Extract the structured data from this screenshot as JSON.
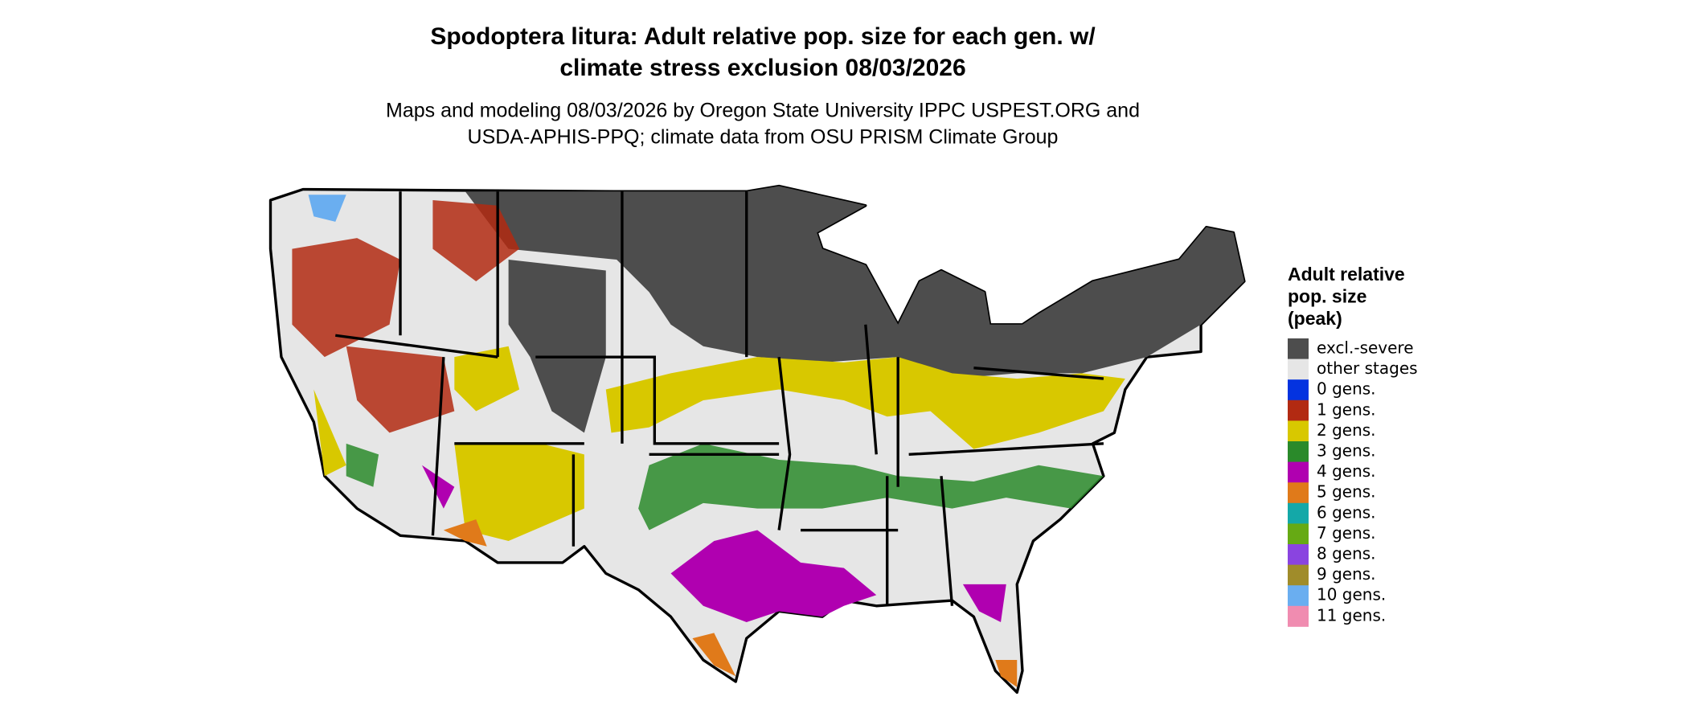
{
  "title": [
    "Spodoptera litura: Adult relative pop. size for each gen. w/",
    "climate stress exclusion 08/03/2026"
  ],
  "subtitle": [
    "Maps and modeling 08/03/2026 by Oregon State University IPPC USPEST.ORG and",
    "USDA-APHIS-PPQ; climate data from OSU PRISM Climate Group"
  ],
  "legend": {
    "title": [
      "Adult relative",
      "pop. size",
      "(peak)"
    ],
    "items": [
      {
        "label": "excl.-severe",
        "color": "#4d4d4d"
      },
      {
        "label": "other stages",
        "color": "#e6e6e6"
      },
      {
        "label": "0 gens.",
        "color": "#0433e0"
      },
      {
        "label": "1 gens.",
        "color": "#b22a12"
      },
      {
        "label": "2 gens.",
        "color": "#d8c800"
      },
      {
        "label": "3 gens.",
        "color": "#2a8a2a"
      },
      {
        "label": "4 gens.",
        "color": "#b000b0"
      },
      {
        "label": "5 gens.",
        "color": "#e07a1a"
      },
      {
        "label": "6 gens.",
        "color": "#14a8a8"
      },
      {
        "label": "7 gens.",
        "color": "#66aa14"
      },
      {
        "label": "8 gens.",
        "color": "#8a44e0"
      },
      {
        "label": "9 gens.",
        "color": "#a08c2a"
      },
      {
        "label": "10 gens.",
        "color": "#6aaef0"
      },
      {
        "label": "11 gens.",
        "color": "#f08cb0"
      }
    ]
  }
}
